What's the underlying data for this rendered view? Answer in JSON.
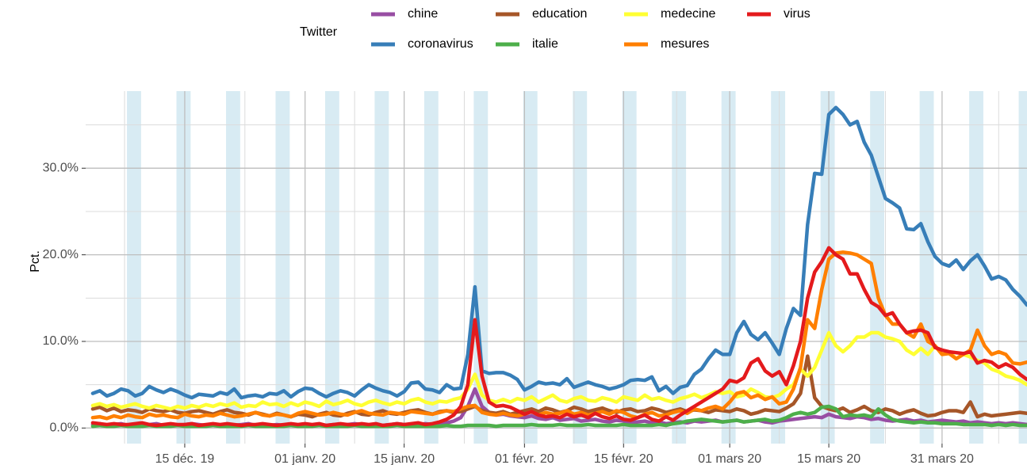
{
  "chart_data": {
    "type": "line",
    "y_label": "Pct.",
    "legend_title": "Twitter",
    "legend_position": "top",
    "grid": true,
    "weekend_shading": true,
    "weekend_color": "#d8ebf3",
    "x": [
      "2019-12-02",
      "2019-12-03",
      "2019-12-04",
      "2019-12-05",
      "2019-12-06",
      "2019-12-07",
      "2019-12-08",
      "2019-12-09",
      "2019-12-10",
      "2019-12-11",
      "2019-12-12",
      "2019-12-13",
      "2019-12-14",
      "2019-12-15",
      "2019-12-16",
      "2019-12-17",
      "2019-12-18",
      "2019-12-19",
      "2019-12-20",
      "2019-12-21",
      "2019-12-22",
      "2019-12-23",
      "2019-12-24",
      "2019-12-25",
      "2019-12-26",
      "2019-12-27",
      "2019-12-28",
      "2019-12-29",
      "2019-12-30",
      "2019-12-31",
      "2020-01-01",
      "2020-01-02",
      "2020-01-03",
      "2020-01-04",
      "2020-01-05",
      "2020-01-06",
      "2020-01-07",
      "2020-01-08",
      "2020-01-09",
      "2020-01-10",
      "2020-01-11",
      "2020-01-12",
      "2020-01-13",
      "2020-01-14",
      "2020-01-15",
      "2020-01-16",
      "2020-01-17",
      "2020-01-18",
      "2020-01-19",
      "2020-01-20",
      "2020-01-21",
      "2020-01-22",
      "2020-01-23",
      "2020-01-24",
      "2020-01-25",
      "2020-01-26",
      "2020-01-27",
      "2020-01-28",
      "2020-01-29",
      "2020-01-30",
      "2020-01-31",
      "2020-02-01",
      "2020-02-02",
      "2020-02-03",
      "2020-02-04",
      "2020-02-05",
      "2020-02-06",
      "2020-02-07",
      "2020-02-08",
      "2020-02-09",
      "2020-02-10",
      "2020-02-11",
      "2020-02-12",
      "2020-02-13",
      "2020-02-14",
      "2020-02-15",
      "2020-02-16",
      "2020-02-17",
      "2020-02-18",
      "2020-02-19",
      "2020-02-20",
      "2020-02-21",
      "2020-02-22",
      "2020-02-23",
      "2020-02-24",
      "2020-02-25",
      "2020-02-26",
      "2020-02-27",
      "2020-02-28",
      "2020-02-29",
      "2020-03-01",
      "2020-03-02",
      "2020-03-03",
      "2020-03-04",
      "2020-03-05",
      "2020-03-06",
      "2020-03-07",
      "2020-03-08",
      "2020-03-09",
      "2020-03-10",
      "2020-03-11",
      "2020-03-12",
      "2020-03-13",
      "2020-03-14",
      "2020-03-15",
      "2020-03-16",
      "2020-03-17",
      "2020-03-18",
      "2020-03-19",
      "2020-03-20",
      "2020-03-21",
      "2020-03-22",
      "2020-03-23",
      "2020-03-24",
      "2020-03-25",
      "2020-03-26",
      "2020-03-27",
      "2020-03-28",
      "2020-03-29",
      "2020-03-30",
      "2020-03-31",
      "2020-04-01",
      "2020-04-02",
      "2020-04-03",
      "2020-04-04",
      "2020-04-05",
      "2020-04-06",
      "2020-04-07",
      "2020-04-08",
      "2020-04-09",
      "2020-04-10",
      "2020-04-11",
      "2020-04-12"
    ],
    "xlim": [
      "2019-12-01",
      "2020-04-12"
    ],
    "xticks": [
      {
        "value": "2019-12-15",
        "label": "15 déc. 19"
      },
      {
        "value": "2020-01-01",
        "label": "01 janv. 20"
      },
      {
        "value": "2020-01-15",
        "label": "15 janv. 20"
      },
      {
        "value": "2020-02-01",
        "label": "01 févr. 20"
      },
      {
        "value": "2020-02-15",
        "label": "15 févr. 20"
      },
      {
        "value": "2020-03-01",
        "label": "01 mars 20"
      },
      {
        "value": "2020-03-15",
        "label": "15 mars 20"
      },
      {
        "value": "2020-03-31",
        "label": "31 mars 20"
      }
    ],
    "ylim": [
      -1.8,
      38.9
    ],
    "yticks": [
      {
        "value": 0,
        "label": "0.0%"
      },
      {
        "value": 10,
        "label": "10.0%"
      },
      {
        "value": 20,
        "label": "20.0%"
      },
      {
        "value": 30,
        "label": "30.0%"
      }
    ],
    "series": [
      {
        "name": "chine",
        "color": "#984ea3",
        "values": [
          0.4,
          0.5,
          0.3,
          0.4,
          0.5,
          0.3,
          0.4,
          0.3,
          0.4,
          0.5,
          0.3,
          0.4,
          0.3,
          0.4,
          0.5,
          0.4,
          0.3,
          0.4,
          0.3,
          0.4,
          0.3,
          0.4,
          0.5,
          0.3,
          0.4,
          0.3,
          0.4,
          0.3,
          0.4,
          0.3,
          0.4,
          0.3,
          0.4,
          0.3,
          0.4,
          0.3,
          0.4,
          0.5,
          0.4,
          0.3,
          0.4,
          0.3,
          0.4,
          0.5,
          0.4,
          0.3,
          0.4,
          0.5,
          0.4,
          0.5,
          0.6,
          0.8,
          1.2,
          2.5,
          4.5,
          2.5,
          1.8,
          1.5,
          1.6,
          1.4,
          1.3,
          1.2,
          1.4,
          1.1,
          1.0,
          1.2,
          0.9,
          1.0,
          1.1,
          0.8,
          0.9,
          1.0,
          0.8,
          0.7,
          0.9,
          0.8,
          0.6,
          0.7,
          0.8,
          0.6,
          0.7,
          0.5,
          0.6,
          0.7,
          0.6,
          0.8,
          0.7,
          0.8,
          0.9,
          0.7,
          0.8,
          0.9,
          0.7,
          0.8,
          0.9,
          0.7,
          0.6,
          0.8,
          0.9,
          1.0,
          1.1,
          1.2,
          1.3,
          1.2,
          1.6,
          1.3,
          1.2,
          1.1,
          1.3,
          1.2,
          1.0,
          1.1,
          0.9,
          0.8,
          0.9,
          1.0,
          0.8,
          0.9,
          0.7,
          0.8,
          0.9,
          0.8,
          0.7,
          0.8,
          0.6,
          0.7,
          0.6,
          0.5,
          0.6,
          0.5,
          0.6,
          0.5,
          0.4
        ]
      },
      {
        "name": "coronavirus",
        "color": "#377eb8",
        "values": [
          4.0,
          4.3,
          3.7,
          4.0,
          4.5,
          4.3,
          3.7,
          4.0,
          4.8,
          4.4,
          4.1,
          4.5,
          4.2,
          3.8,
          3.5,
          3.9,
          3.8,
          3.7,
          4.1,
          3.9,
          4.5,
          3.5,
          3.7,
          3.8,
          3.6,
          4.0,
          3.9,
          4.3,
          3.6,
          4.2,
          4.6,
          4.5,
          4.0,
          3.6,
          4.0,
          4.3,
          4.1,
          3.7,
          4.4,
          5.0,
          4.6,
          4.3,
          4.1,
          3.7,
          4.2,
          5.2,
          5.3,
          4.5,
          4.4,
          4.1,
          5.0,
          4.5,
          4.6,
          8.5,
          16.3,
          6.6,
          6.3,
          6.4,
          6.4,
          6.1,
          5.6,
          4.4,
          4.8,
          5.3,
          5.1,
          5.2,
          5.0,
          5.7,
          4.7,
          5.0,
          5.3,
          5.0,
          4.8,
          4.5,
          4.7,
          5.0,
          5.5,
          5.6,
          5.5,
          5.9,
          4.3,
          4.8,
          4.0,
          4.7,
          4.9,
          6.2,
          6.8,
          8.0,
          9.0,
          8.5,
          8.5,
          11.0,
          12.3,
          10.8,
          10.2,
          11.0,
          9.8,
          8.5,
          11.5,
          13.8,
          13.0,
          23.5,
          29.4,
          29.3,
          36.2,
          37.0,
          36.2,
          35.0,
          35.4,
          33.0,
          31.5,
          29.0,
          26.5,
          26.0,
          25.4,
          23.0,
          22.9,
          23.6,
          21.5,
          19.8,
          19.0,
          18.7,
          19.4,
          18.3,
          19.3,
          20.0,
          18.7,
          17.2,
          17.5,
          17.1,
          16.0,
          15.2,
          14.2
        ]
      },
      {
        "name": "education",
        "color": "#a65628",
        "values": [
          2.2,
          2.4,
          2.0,
          2.3,
          1.9,
          2.1,
          2.0,
          1.8,
          2.2,
          2.0,
          1.9,
          2.1,
          1.8,
          1.7,
          1.9,
          2.0,
          1.8,
          1.6,
          1.9,
          2.1,
          1.8,
          1.7,
          1.5,
          1.8,
          1.6,
          1.4,
          1.7,
          1.5,
          1.3,
          1.6,
          1.5,
          1.3,
          1.6,
          1.8,
          1.5,
          1.4,
          1.7,
          1.9,
          1.6,
          1.5,
          1.8,
          2.0,
          1.7,
          1.6,
          1.8,
          2.0,
          2.1,
          1.8,
          1.6,
          1.9,
          2.0,
          1.8,
          1.9,
          2.2,
          2.5,
          2.0,
          1.8,
          1.7,
          1.9,
          1.6,
          1.8,
          2.0,
          2.2,
          1.9,
          2.3,
          2.1,
          1.8,
          2.0,
          2.4,
          2.2,
          1.9,
          2.1,
          2.3,
          2.0,
          1.8,
          2.1,
          2.2,
          1.9,
          2.0,
          2.3,
          2.1,
          1.8,
          2.0,
          2.2,
          1.9,
          2.1,
          2.0,
          1.8,
          2.1,
          2.0,
          1.9,
          2.2,
          2.0,
          1.6,
          1.8,
          2.1,
          2.0,
          1.9,
          2.3,
          2.8,
          4.0,
          8.3,
          3.5,
          2.5,
          2.2,
          2.0,
          2.3,
          1.8,
          2.1,
          2.5,
          2.0,
          1.8,
          2.2,
          2.0,
          1.6,
          1.9,
          2.1,
          1.7,
          1.4,
          1.5,
          1.8,
          2.0,
          2.0,
          1.8,
          3.0,
          1.3,
          1.6,
          1.4,
          1.5,
          1.6,
          1.7,
          1.8,
          1.7
        ]
      },
      {
        "name": "italie",
        "color": "#4daf4a",
        "values": [
          0.2,
          0.3,
          0.2,
          0.2,
          0.3,
          0.2,
          0.2,
          0.2,
          0.3,
          0.2,
          0.2,
          0.2,
          0.3,
          0.2,
          0.2,
          0.2,
          0.2,
          0.3,
          0.2,
          0.2,
          0.2,
          0.2,
          0.3,
          0.2,
          0.2,
          0.2,
          0.2,
          0.2,
          0.3,
          0.2,
          0.2,
          0.2,
          0.3,
          0.2,
          0.2,
          0.2,
          0.2,
          0.3,
          0.2,
          0.2,
          0.2,
          0.2,
          0.2,
          0.3,
          0.2,
          0.2,
          0.2,
          0.2,
          0.2,
          0.2,
          0.3,
          0.2,
          0.2,
          0.3,
          0.3,
          0.3,
          0.3,
          0.2,
          0.3,
          0.3,
          0.3,
          0.3,
          0.4,
          0.3,
          0.3,
          0.3,
          0.4,
          0.3,
          0.3,
          0.3,
          0.4,
          0.3,
          0.3,
          0.3,
          0.3,
          0.4,
          0.3,
          0.3,
          0.3,
          0.3,
          0.4,
          0.3,
          0.5,
          0.6,
          0.8,
          0.9,
          1.0,
          0.9,
          0.8,
          0.7,
          0.8,
          0.9,
          0.7,
          0.8,
          0.9,
          1.0,
          0.8,
          0.9,
          1.2,
          1.6,
          1.8,
          1.6,
          1.8,
          2.4,
          2.5,
          2.2,
          1.3,
          1.5,
          1.4,
          1.5,
          1.3,
          2.2,
          1.5,
          1.0,
          0.8,
          0.7,
          0.6,
          0.7,
          0.6,
          0.6,
          0.5,
          0.5,
          0.5,
          0.4,
          0.4,
          0.4,
          0.4,
          0.3,
          0.4,
          0.3,
          0.4,
          0.3,
          0.3
        ]
      },
      {
        "name": "medecine",
        "color": "#ffff33",
        "values": [
          2.6,
          2.8,
          2.5,
          2.7,
          2.4,
          2.6,
          2.8,
          2.5,
          2.3,
          2.6,
          2.4,
          2.2,
          2.5,
          2.3,
          2.6,
          2.4,
          2.7,
          2.5,
          2.8,
          2.6,
          2.9,
          2.4,
          2.6,
          2.5,
          3.0,
          2.7,
          2.8,
          2.5,
          2.9,
          2.6,
          3.0,
          2.8,
          2.5,
          3.1,
          2.7,
          2.9,
          3.2,
          2.8,
          2.6,
          3.0,
          3.2,
          2.9,
          2.7,
          3.0,
          2.8,
          3.2,
          3.4,
          3.0,
          2.8,
          3.1,
          3.0,
          3.3,
          3.5,
          4.5,
          6.2,
          3.8,
          3.2,
          3.0,
          3.3,
          3.0,
          3.4,
          3.2,
          3.6,
          3.0,
          3.4,
          3.8,
          3.2,
          3.0,
          3.4,
          3.6,
          3.2,
          3.1,
          3.5,
          3.3,
          3.0,
          3.6,
          3.4,
          3.2,
          3.8,
          3.3,
          3.5,
          3.2,
          3.0,
          3.4,
          3.6,
          3.9,
          3.5,
          3.8,
          4.2,
          4.0,
          4.2,
          3.6,
          3.8,
          4.5,
          4.1,
          3.6,
          3.5,
          3.8,
          4.5,
          5.0,
          6.8,
          6.0,
          7.0,
          9.0,
          11.0,
          9.5,
          8.8,
          9.5,
          10.5,
          10.5,
          11.0,
          11.0,
          10.5,
          10.3,
          10.0,
          9.0,
          8.5,
          9.2,
          8.5,
          9.5,
          8.5,
          8.8,
          8.0,
          8.5,
          8.2,
          7.8,
          7.5,
          6.8,
          6.5,
          6.0,
          5.8,
          5.5,
          5.0
        ]
      },
      {
        "name": "mesures",
        "color": "#ff7f00",
        "values": [
          1.2,
          1.3,
          1.1,
          1.4,
          1.2,
          1.5,
          1.3,
          1.2,
          1.6,
          1.4,
          1.5,
          1.3,
          1.2,
          1.6,
          1.4,
          1.3,
          1.5,
          1.4,
          1.7,
          1.5,
          1.3,
          1.4,
          1.6,
          1.8,
          1.5,
          1.4,
          1.6,
          1.5,
          1.3,
          1.7,
          1.9,
          1.7,
          1.5,
          1.6,
          1.8,
          1.6,
          1.5,
          1.8,
          2.0,
          1.7,
          1.6,
          1.5,
          1.8,
          1.7,
          1.6,
          1.9,
          1.8,
          1.7,
          1.6,
          1.8,
          2.0,
          1.9,
          2.2,
          2.5,
          2.6,
          1.8,
          1.6,
          1.5,
          1.7,
          1.5,
          1.4,
          1.6,
          1.9,
          1.5,
          1.8,
          1.6,
          1.7,
          2.0,
          1.6,
          1.8,
          1.5,
          1.7,
          1.9,
          1.6,
          2.0,
          1.8,
          1.4,
          1.2,
          1.6,
          1.8,
          1.4,
          1.5,
          1.8,
          2.0,
          1.7,
          2.2,
          2.0,
          2.3,
          2.5,
          2.2,
          3.0,
          4.0,
          4.2,
          3.5,
          3.8,
          3.3,
          3.6,
          2.8,
          3.0,
          4.5,
          7.0,
          12.5,
          11.5,
          16.0,
          19.5,
          20.2,
          20.3,
          20.2,
          20.0,
          19.5,
          19.0,
          15.0,
          13.0,
          12.0,
          12.0,
          11.0,
          10.5,
          12.0,
          10.0,
          9.5,
          8.5,
          8.6,
          8.0,
          8.5,
          9.0,
          11.3,
          9.5,
          8.5,
          8.8,
          8.5,
          7.5,
          7.4,
          7.6
        ]
      },
      {
        "name": "virus",
        "color": "#e41a1c",
        "values": [
          0.6,
          0.5,
          0.4,
          0.5,
          0.4,
          0.4,
          0.5,
          0.6,
          0.4,
          0.3,
          0.4,
          0.5,
          0.4,
          0.4,
          0.5,
          0.3,
          0.4,
          0.5,
          0.4,
          0.5,
          0.4,
          0.3,
          0.4,
          0.4,
          0.5,
          0.4,
          0.3,
          0.4,
          0.5,
          0.4,
          0.5,
          0.4,
          0.5,
          0.3,
          0.4,
          0.5,
          0.4,
          0.4,
          0.5,
          0.4,
          0.5,
          0.3,
          0.4,
          0.5,
          0.4,
          0.5,
          0.6,
          0.4,
          0.5,
          0.7,
          1.0,
          1.5,
          2.5,
          5.0,
          12.5,
          6.0,
          3.0,
          2.5,
          2.6,
          2.4,
          2.0,
          1.6,
          1.9,
          1.5,
          1.3,
          1.4,
          1.2,
          1.6,
          1.3,
          1.5,
          1.2,
          1.7,
          1.3,
          1.1,
          1.4,
          1.0,
          0.9,
          1.2,
          1.5,
          1.0,
          0.8,
          1.3,
          0.9,
          1.5,
          2.0,
          2.5,
          3.0,
          3.5,
          4.0,
          4.5,
          5.5,
          5.3,
          5.8,
          7.5,
          8.0,
          6.6,
          6.0,
          6.5,
          5.0,
          7.2,
          10.0,
          15.0,
          18.0,
          19.2,
          20.8,
          20.0,
          19.5,
          17.8,
          17.8,
          16.0,
          14.5,
          14.0,
          13.0,
          13.3,
          12.0,
          11.0,
          11.2,
          11.3,
          11.0,
          9.3,
          9.0,
          8.8,
          8.7,
          8.6,
          8.8,
          7.5,
          7.8,
          7.6,
          7.0,
          7.4,
          7.0,
          6.2,
          5.6
        ]
      }
    ]
  }
}
